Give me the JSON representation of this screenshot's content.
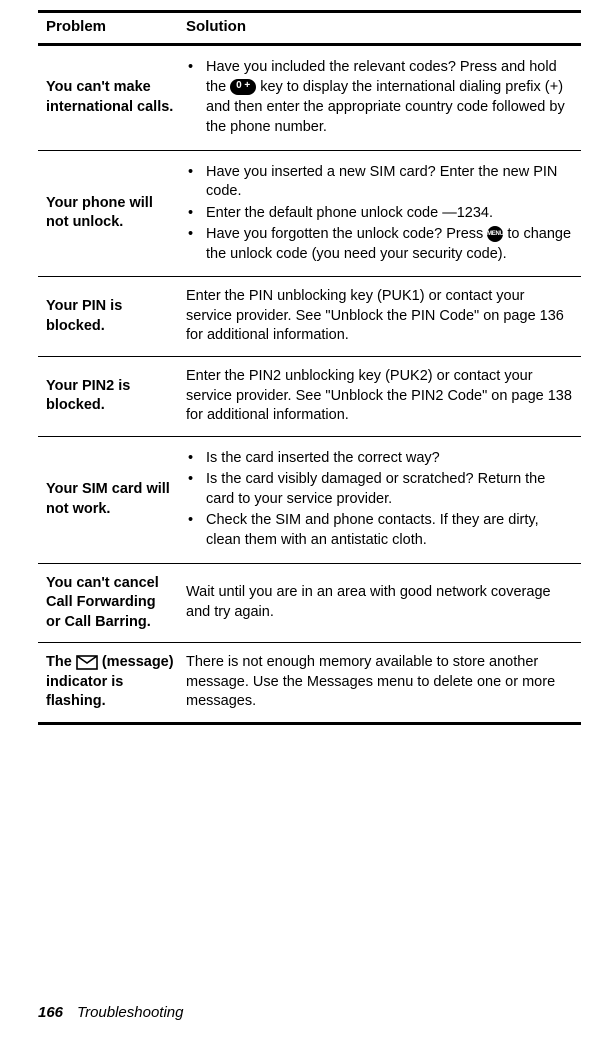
{
  "table": {
    "headers": {
      "problem": "Problem",
      "solution": "Solution"
    },
    "rows": [
      {
        "problem": "You can't make international calls.",
        "bullets": [
          {
            "pre": "Have you included the relevant codes? Press and hold the ",
            "key_oval": "0 +",
            "mid": " key to display the international dialing prefix (",
            "plus": "+",
            "post": ") and then enter the appropriate country code followed by the phone number."
          }
        ]
      },
      {
        "problem": "Your phone will not unlock.",
        "bullets": [
          {
            "text": "Have you inserted a new SIM card? Enter the new PIN code."
          },
          {
            "text": "Enter the default phone unlock code —1234."
          },
          {
            "pre": "Have you forgotten the unlock code? Press ",
            "key_circ": "MENU",
            "post": " to change the unlock code (you need your security code)."
          }
        ]
      },
      {
        "problem": "Your PIN is blocked.",
        "plain": "Enter the PIN unblocking key (PUK1) or contact your service provider. See \"Unblock the PIN Code\" on page 136 for additional information."
      },
      {
        "problem": "Your PIN2 is blocked.",
        "plain": "Enter the PIN2 unblocking key (PUK2) or contact your service provider. See \"Unblock the PIN2 Code\" on page 138 for additional information."
      },
      {
        "problem": "Your SIM card will not work.",
        "bullets": [
          {
            "text": "Is the card inserted the correct way?"
          },
          {
            "text": "Is the card visibly damaged or scratched? Return the card to your service provider."
          },
          {
            "text": "Check the SIM and phone contacts. If they are dirty, clean them with an antistatic cloth."
          }
        ]
      },
      {
        "problem": "You can't cancel Call Forwarding or Call Barring.",
        "plain": "Wait until you are in an area with good network coverage and try again."
      },
      {
        "problem_pre": "The ",
        "problem_icon": "envelope",
        "problem_post": " (message) indicator is flashing.",
        "plain": "There is not enough memory available to store another message. Use the Messages menu to delete one or more messages."
      }
    ]
  },
  "footer": {
    "page_number": "166",
    "section": "Troubleshooting"
  }
}
